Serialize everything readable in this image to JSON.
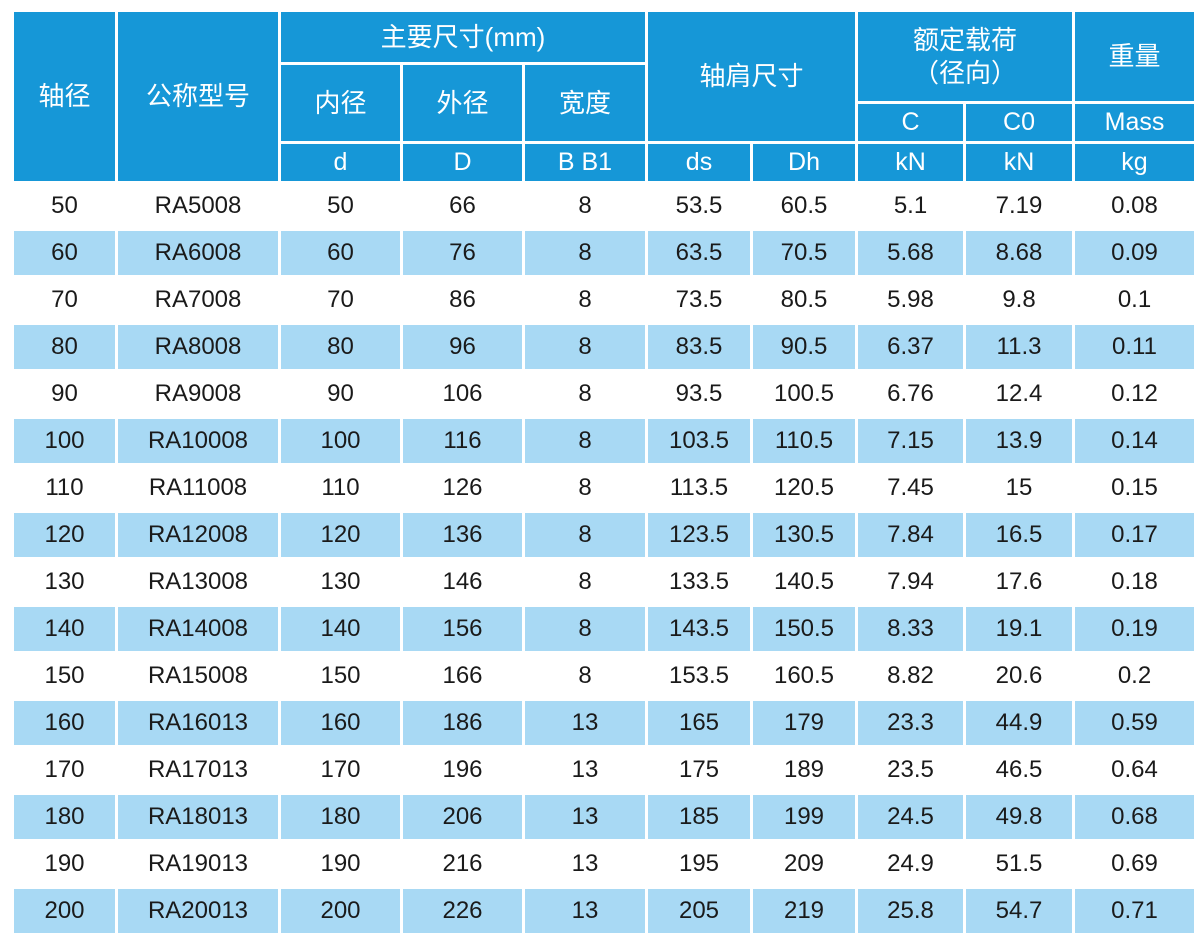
{
  "table": {
    "header": {
      "shaft_diameter": "轴径",
      "model": "公称型号",
      "main_dims": "主要尺寸(mm)",
      "inner_diameter": "内径",
      "outer_diameter": "外径",
      "width": "宽度",
      "d": "d",
      "D": "D",
      "b_b1": "B B1",
      "shoulder_dims": "轴肩尺寸",
      "ds": "ds",
      "dh": "Dh",
      "rated_load": "额定载荷\n（径向）",
      "c": "C",
      "c0": "C0",
      "kn_c": "kN",
      "kn_c0": "kN",
      "weight": "重量",
      "mass": "Mass",
      "kg": "kg"
    },
    "rows": [
      [
        50,
        "RA5008",
        50,
        66,
        8,
        53.5,
        60.5,
        5.1,
        7.19,
        0.08
      ],
      [
        60,
        "RA6008",
        60,
        76,
        8,
        63.5,
        70.5,
        5.68,
        8.68,
        0.09
      ],
      [
        70,
        "RA7008",
        70,
        86,
        8,
        73.5,
        80.5,
        5.98,
        9.8,
        0.1
      ],
      [
        80,
        "RA8008",
        80,
        96,
        8,
        83.5,
        90.5,
        6.37,
        11.3,
        0.11
      ],
      [
        90,
        "RA9008",
        90,
        106,
        8,
        93.5,
        100.5,
        6.76,
        12.4,
        0.12
      ],
      [
        100,
        "RA10008",
        100,
        116,
        8,
        103.5,
        110.5,
        7.15,
        13.9,
        0.14
      ],
      [
        110,
        "RA11008",
        110,
        126,
        8,
        113.5,
        120.5,
        7.45,
        15,
        0.15
      ],
      [
        120,
        "RA12008",
        120,
        136,
        8,
        123.5,
        130.5,
        7.84,
        16.5,
        0.17
      ],
      [
        130,
        "RA13008",
        130,
        146,
        8,
        133.5,
        140.5,
        7.94,
        17.6,
        0.18
      ],
      [
        140,
        "RA14008",
        140,
        156,
        8,
        143.5,
        150.5,
        8.33,
        19.1,
        0.19
      ],
      [
        150,
        "RA15008",
        150,
        166,
        8,
        153.5,
        160.5,
        8.82,
        20.6,
        0.2
      ],
      [
        160,
        "RA16013",
        160,
        186,
        13,
        165,
        179,
        23.3,
        44.9,
        0.59
      ],
      [
        170,
        "RA17013",
        170,
        196,
        13,
        175,
        189,
        23.5,
        46.5,
        0.64
      ],
      [
        180,
        "RA18013",
        180,
        206,
        13,
        185,
        199,
        24.5,
        49.8,
        0.68
      ],
      [
        190,
        "RA19013",
        190,
        216,
        13,
        195,
        209,
        24.9,
        51.5,
        0.69
      ],
      [
        200,
        "RA20013",
        200,
        226,
        13,
        205,
        219,
        25.8,
        54.7,
        0.71
      ]
    ]
  },
  "colors": {
    "header_blue": "#1697d7",
    "row_highlight_blue": "#a8d9f4",
    "data_text": "#1a1a1a",
    "grid_line": "#ffffff"
  }
}
